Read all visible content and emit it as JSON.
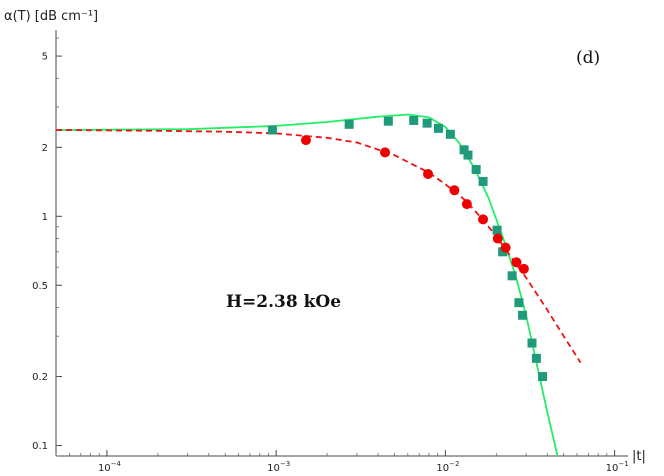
{
  "chart_data": {
    "type": "scatter",
    "title": "",
    "panel_label": "(d)",
    "annotation": "H=2.38 kOe",
    "xlabel": "|t|",
    "ylabel": "α(T) [dB cm⁻¹]",
    "x_scale": "log",
    "y_scale": "log",
    "xlim": [
      5e-05,
      0.12
    ],
    "ylim": [
      0.09,
      6.5
    ],
    "grid": false,
    "x_ticks": [
      {
        "value": 0.0001,
        "base": "10",
        "exp": "−4"
      },
      {
        "value": 0.001,
        "base": "10",
        "exp": "−3"
      },
      {
        "value": 0.01,
        "base": "10",
        "exp": "−2"
      },
      {
        "value": 0.1,
        "base": "10",
        "exp": "−1"
      }
    ],
    "y_ticks": [
      {
        "value": 0.1,
        "label": "0.1"
      },
      {
        "value": 0.2,
        "label": "0.2"
      },
      {
        "value": 0.5,
        "label": "0.5"
      },
      {
        "value": 1,
        "label": "1"
      },
      {
        "value": 2,
        "label": "2"
      },
      {
        "value": 5,
        "label": "5"
      }
    ],
    "series": [
      {
        "marker": "square",
        "color": "#1f9a7a",
        "x": [
          0.00095,
          0.0027,
          0.0046,
          0.0065,
          0.0078,
          0.0091,
          0.0107,
          0.0129,
          0.0136,
          0.0152,
          0.0167,
          0.0202,
          0.0218,
          0.0248,
          0.0272,
          0.0286,
          0.0325,
          0.0345,
          0.0375
        ],
        "y": [
          2.38,
          2.52,
          2.6,
          2.62,
          2.55,
          2.42,
          2.28,
          1.95,
          1.85,
          1.6,
          1.42,
          0.87,
          0.7,
          0.55,
          0.42,
          0.37,
          0.28,
          0.24,
          0.2
        ]
      },
      {
        "marker": "circle",
        "color": "#ee0000",
        "x": [
          0.0015,
          0.0044,
          0.0079,
          0.0113,
          0.0134,
          0.0167,
          0.0204,
          0.0227,
          0.0263,
          0.0291
        ],
        "y": [
          2.15,
          1.9,
          1.53,
          1.3,
          1.13,
          0.97,
          0.8,
          0.73,
          0.63,
          0.59
        ]
      },
      {
        "marker": "line",
        "style": "solid",
        "color": "#22ee66",
        "x": [
          5e-05,
          0.0003,
          0.001,
          0.002,
          0.004,
          0.006,
          0.008,
          0.01,
          0.012,
          0.015,
          0.018,
          0.022,
          0.026,
          0.03,
          0.035,
          0.04,
          0.046
        ],
        "y": [
          2.38,
          2.4,
          2.48,
          2.58,
          2.72,
          2.78,
          2.7,
          2.45,
          2.1,
          1.6,
          1.2,
          0.8,
          0.55,
          0.37,
          0.22,
          0.14,
          0.09
        ]
      },
      {
        "marker": "line",
        "style": "dashed",
        "color": "#ee1111",
        "x": [
          5e-05,
          0.0002,
          0.0005,
          0.001,
          0.002,
          0.003,
          0.005,
          0.008,
          0.01,
          0.013,
          0.016,
          0.02,
          0.025,
          0.03,
          0.04,
          0.05,
          0.063
        ],
        "y": [
          2.38,
          2.36,
          2.34,
          2.3,
          2.2,
          2.1,
          1.85,
          1.55,
          1.38,
          1.18,
          1.0,
          0.82,
          0.65,
          0.54,
          0.39,
          0.3,
          0.23
        ]
      }
    ]
  }
}
